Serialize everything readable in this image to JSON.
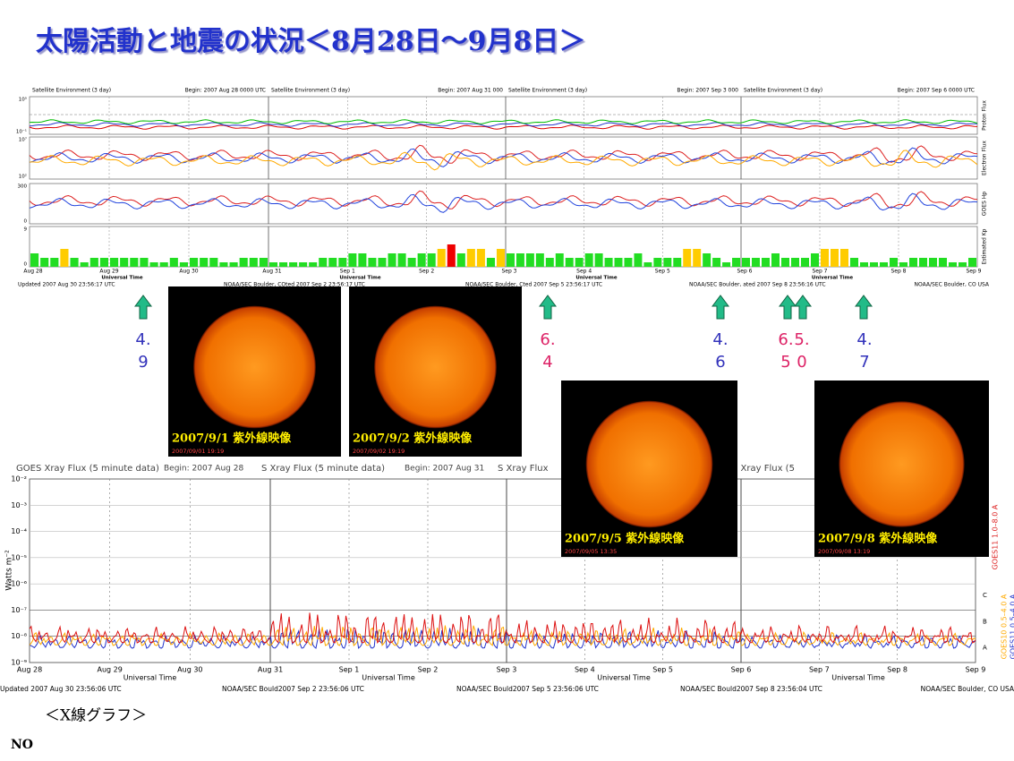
{
  "title": "太陽活動と地震の状況＜8月28日～9月8日＞",
  "top": {
    "panels": [
      {
        "header": "Satellite Environment (3 day)",
        "begin": "Begin:  2007 Aug 28 0000 UTC",
        "days": [
          "Aug 28",
          "Aug 29",
          "Aug 30"
        ],
        "kp": [
          3,
          2,
          2,
          4,
          2,
          1,
          2,
          2,
          2,
          2,
          2,
          2,
          1,
          1,
          2,
          1,
          2,
          2,
          2,
          1,
          1,
          2,
          2,
          2
        ]
      },
      {
        "header": "Satellite Environment (3 day)",
        "begin": "Begin:  2007 Aug 31 000",
        "days": [
          "Aug 31",
          "Sep 1",
          "Sep 2"
        ],
        "kp": [
          1,
          1,
          1,
          1,
          1,
          2,
          2,
          2,
          3,
          3,
          2,
          2,
          3,
          3,
          2,
          3,
          3,
          4,
          5,
          3,
          4,
          4,
          2,
          4
        ]
      },
      {
        "header": "Satellite Environment (3 day)",
        "begin": "Begin:  2007 Sep 3 000",
        "days": [
          "Sep 3",
          "Sep 4",
          "Sep 5"
        ],
        "kp": [
          3,
          3,
          3,
          3,
          2,
          3,
          2,
          2,
          3,
          3,
          2,
          2,
          2,
          3,
          1,
          2,
          2,
          2,
          4,
          4,
          3,
          2,
          1,
          2
        ]
      },
      {
        "header": "Satellite Environment (3 day)",
        "begin": "Begin:  2007 Sep 6 0000 UTC",
        "days": [
          "Sep 6",
          "Sep 7",
          "Sep 8"
        ],
        "kp": [
          2,
          2,
          2,
          3,
          2,
          2,
          2,
          3,
          4,
          4,
          4,
          2,
          1,
          1,
          1,
          2,
          1,
          2,
          2,
          2,
          2,
          1,
          1,
          2
        ]
      }
    ],
    "end_day": "Sep 9",
    "kp_max": 9,
    "row_labels": [
      "Proton Flux",
      "Electron Flux",
      "GOES Hp",
      "Estimated Kp"
    ],
    "row_ticks": [
      [
        "10⁵",
        "10⁻¹"
      ],
      [
        "10⁷",
        "10²"
      ],
      [
        "300",
        "0"
      ],
      [
        "9",
        "0"
      ]
    ],
    "axis_title": "Universal Time",
    "footers": [
      "Updated 2007 Aug 30 23:56:17 UTC",
      "NOAA/SEC Boulder, COted 2007 Sep  2 23:56:17 UTC",
      "NOAA/SEC Boulder, Cted 2007 Sep  5 23:56:17 UTC",
      "NOAA/SEC Boulder, ated 2007 Sep  8 23:56:16 UTC",
      "NOAA/SEC Boulder, CO USA"
    ]
  },
  "quakes": [
    {
      "top": "4.",
      "bottom": "9",
      "color": "#3333bb"
    },
    {
      "top": "6.",
      "bottom": "4",
      "color": "#dd2266"
    },
    {
      "top": "4.",
      "bottom": "6",
      "color": "#3333bb"
    },
    {
      "top": "6.",
      "bottom": "5",
      "color": "#dd2266"
    },
    {
      "top": "5.",
      "bottom": "0",
      "color": "#dd2266"
    },
    {
      "top": "4.",
      "bottom": "7",
      "color": "#3333bb"
    }
  ],
  "images": [
    {
      "caption": "2007/9/1 紫外線映像",
      "stamp": "2007/09/01 19:19"
    },
    {
      "caption": "2007/9/2 紫外線映像",
      "stamp": "2007/09/02 19:19"
    },
    {
      "caption": "2007/9/5 紫外線映像",
      "stamp": "2007/09/05 13:35"
    },
    {
      "caption": "2007/9/8 紫外線映像",
      "stamp": "2007/09/08 13:19"
    }
  ],
  "xray": {
    "panels": [
      {
        "header": "GOES Xray Flux (5 minute data)",
        "begin": "Begin:  2007 Aug 28",
        "days": [
          "Aug 28",
          "Aug 29",
          "Aug 30"
        ]
      },
      {
        "header": "S Xray Flux (5 minute data)",
        "begin": "Begin:  2007 Aug 31",
        "days": [
          "Aug 31",
          "Sep 1",
          "Sep 2"
        ]
      },
      {
        "header": "S Xray Flux",
        "begin": "",
        "days": [
          "Sep 3",
          "Sep 4",
          "Sep 5"
        ]
      },
      {
        "header": "S Xray Flux (5",
        "begin": "",
        "days": [
          "Sep 6",
          "Sep 7",
          "Sep 8"
        ]
      }
    ],
    "end_day": "Sep 9",
    "y_ticks": [
      "10⁻²",
      "10⁻³",
      "10⁻⁴",
      "10⁻⁵",
      "10⁻⁶",
      "10⁻⁷",
      "10⁻⁸",
      "10⁻⁹"
    ],
    "y_title": "Watts m⁻²",
    "class_labels": [
      "C",
      "B",
      "A"
    ],
    "legend": [
      "GOES11 1.0–8.0 A",
      "GOES10 0.5–4.0 A",
      "GOES11 0.5–4.0 A"
    ],
    "axis_title": "Universal Time",
    "footers": [
      "Updated 2007 Aug 30 23:56:06 UTC",
      "NOAA/SEC Bould2007 Sep  2 23:56:06 UTC",
      "NOAA/SEC Bould2007 Sep  5 23:56:06 UTC",
      "NOAA/SEC Bould2007 Sep  8 23:56:04 UTC",
      "NOAA/SEC Boulder, CO USA"
    ]
  },
  "caption": "＜X線グラフ＞",
  "footnote": "NO"
}
